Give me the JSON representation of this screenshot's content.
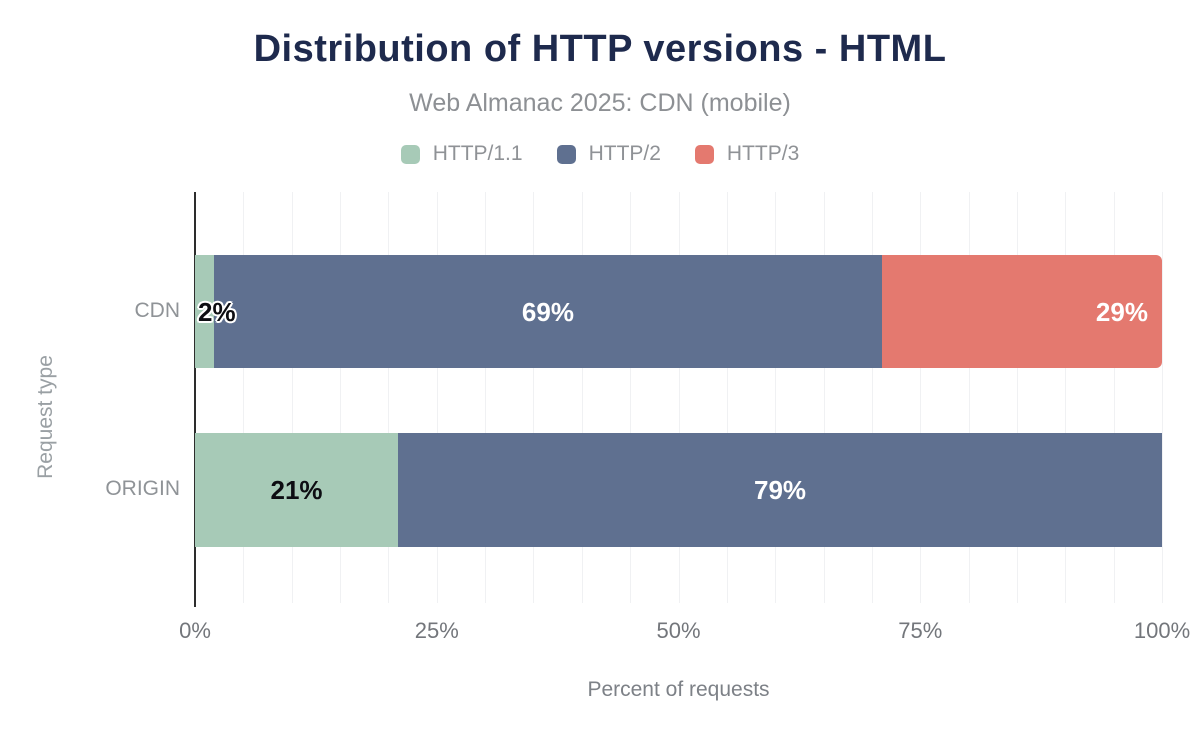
{
  "chart": {
    "title": "Distribution of HTTP versions - HTML",
    "subtitle": "Web Almanac 2025: CDN (mobile)",
    "x_axis_title": "Percent of requests",
    "y_axis_title": "Request type",
    "x_ticks": [
      {
        "label": "0%",
        "pos": 0
      },
      {
        "label": "25%",
        "pos": 25
      },
      {
        "label": "50%",
        "pos": 50
      },
      {
        "label": "75%",
        "pos": 75
      },
      {
        "label": "100%",
        "pos": 100
      }
    ],
    "legend": [
      {
        "label": "HTTP/1.1",
        "color": "#a7cab7"
      },
      {
        "label": "HTTP/2",
        "color": "#5f7090"
      },
      {
        "label": "HTTP/3",
        "color": "#e4796f"
      }
    ]
  },
  "chart_data": {
    "type": "bar",
    "orientation": "horizontal",
    "stacked": true,
    "title": "Distribution of HTTP versions - HTML",
    "subtitle": "Web Almanac 2025: CDN (mobile)",
    "xlabel": "Percent of requests",
    "ylabel": "Request type",
    "xlim": [
      0,
      100
    ],
    "grid": "vertical lines every 5%",
    "legend_position": "top-center",
    "categories": [
      "CDN",
      "ORIGIN"
    ],
    "series": [
      {
        "name": "HTTP/1.1",
        "color": "#a7cab7",
        "values": [
          2,
          21
        ]
      },
      {
        "name": "HTTP/2",
        "color": "#5f7090",
        "values": [
          69,
          79
        ]
      },
      {
        "name": "HTTP/3",
        "color": "#e4796f",
        "values": [
          29,
          0
        ]
      }
    ],
    "bars": [
      {
        "category": "CDN",
        "segments": [
          {
            "series": "HTTP/1.1",
            "value": 2,
            "label": "2%",
            "label_style": "dark-outlined",
            "label_align": "overflow-start"
          },
          {
            "series": "HTTP/2",
            "value": 69,
            "label": "69%",
            "label_style": "light",
            "label_align": "center"
          },
          {
            "series": "HTTP/3",
            "value": 29,
            "label": "29%",
            "label_style": "light",
            "label_align": "end",
            "rounded_end": true
          }
        ]
      },
      {
        "category": "ORIGIN",
        "segments": [
          {
            "series": "HTTP/1.1",
            "value": 21,
            "label": "21%",
            "label_style": "dark",
            "label_align": "center"
          },
          {
            "series": "HTTP/2",
            "value": 79,
            "label": "79%",
            "label_style": "light",
            "label_align": "center"
          }
        ]
      }
    ]
  },
  "colors": {
    "title": "#1e2a4d",
    "subtitle": "#8d9094",
    "tick_text": "#73767b",
    "category_text": "#8f9397",
    "gridline": "#f0f1f3",
    "axis_line": "#2d2d2d",
    "background": "#ffffff"
  }
}
